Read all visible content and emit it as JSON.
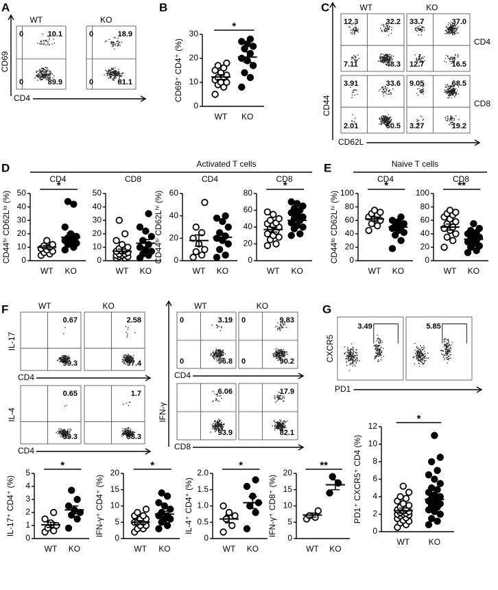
{
  "chart_data": [
    {
      "type": "flow",
      "panel": "A",
      "xlabel": "CD4",
      "ylabel": "CD69",
      "columns": [
        "WT",
        "KO"
      ],
      "rows": [
        {
          "plots": [
            {
              "quadrants": {
                "ul": 0,
                "ur": 10.1,
                "ll": 0,
                "lr": 89.9
              }
            },
            {
              "quadrants": {
                "ul": 0,
                "ur": 18.9,
                "ll": 0,
                "lr": 81.1
              }
            }
          ]
        }
      ]
    },
    {
      "type": "dot",
      "panel": "B",
      "ylabel": "CD69⁺ CD4⁺ (%)",
      "ylim": [
        0,
        30
      ],
      "yticks": [
        0,
        10,
        20,
        30
      ],
      "significance": "*",
      "groups": [
        {
          "label": "WT",
          "marker": "open",
          "values": [
            5,
            8,
            9,
            10,
            10,
            11,
            12,
            12,
            13,
            14,
            15,
            16,
            17,
            18
          ],
          "mean": 12.2,
          "sem": 1.0
        },
        {
          "label": "KO",
          "marker": "filled",
          "values": [
            8,
            12,
            14,
            17,
            19,
            20,
            22,
            24,
            25,
            26,
            27,
            28
          ],
          "mean": 20.5,
          "sem": 2.2
        }
      ]
    },
    {
      "type": "flow",
      "panel": "C",
      "xlabel": "CD62L",
      "ylabel": "CD44",
      "columns": [
        "WT",
        "KO"
      ],
      "rows": [
        {
          "label": "CD4",
          "plots": [
            {
              "quadrants": {
                "ul": 12.3,
                "ur": 32.2,
                "ll": 7.11,
                "lr": 48.3
              }
            },
            {
              "quadrants": {
                "ul": 33.7,
                "ur": 37,
                "ll": 12.7,
                "lr": 16.5
              },
              "value_labels": {
                "ur": "37.0"
              }
            }
          ]
        },
        {
          "label": "CD8",
          "plots": [
            {
              "quadrants": {
                "ul": 3.91,
                "ur": 33.6,
                "ll": 2.01,
                "lr": 60.5
              }
            },
            {
              "quadrants": {
                "ul": 9.05,
                "ur": 68.5,
                "ll": 3.27,
                "lr": 19.2
              }
            }
          ]
        }
      ]
    },
    {
      "type": "dot",
      "panel": "D",
      "group_title": "Activated T cells",
      "title": "CD4",
      "ylabel": "CD44ʰⁱ CD62Lˡᵒ (%)",
      "ylim": [
        0,
        50
      ],
      "yticks": [
        0,
        10,
        20,
        30,
        40,
        50
      ],
      "significance": "*",
      "groups": [
        {
          "label": "WT",
          "marker": "open",
          "values": [
            4,
            5,
            6,
            7,
            8,
            9,
            10,
            11,
            12,
            15
          ],
          "mean": 10,
          "sem": 1.2
        },
        {
          "label": "KO",
          "marker": "filled",
          "values": [
            8,
            10,
            12,
            13,
            14,
            15,
            16,
            17,
            18,
            20,
            25,
            42,
            44
          ],
          "mean": 17.5,
          "sem": 2.9
        }
      ]
    },
    {
      "type": "dot",
      "title": "CD8",
      "ylim": [
        0,
        50
      ],
      "yticks": [
        0,
        10,
        20,
        30,
        40,
        50
      ],
      "groups": [
        {
          "label": "WT",
          "marker": "open",
          "values": [
            2,
            2,
            3,
            3,
            4,
            4,
            5,
            5,
            6,
            7,
            7,
            8,
            9,
            10,
            12,
            15,
            20,
            30
          ],
          "mean": 7,
          "sem": 1.6
        },
        {
          "label": "KO",
          "marker": "filled",
          "values": [
            2,
            4,
            5,
            7,
            8,
            10,
            12,
            15,
            18,
            22,
            25,
            35
          ],
          "mean": 13,
          "sem": 2.8
        }
      ]
    },
    {
      "type": "dot",
      "title": "CD4",
      "ylabel": "CD44ʰⁱ CD62Lʰⁱ (%)",
      "ylim": [
        0,
        60
      ],
      "yticks": [
        0,
        20,
        40,
        60
      ],
      "groups": [
        {
          "label": "WT",
          "marker": "open",
          "values": [
            3,
            5,
            8,
            10,
            15,
            20,
            25,
            30,
            52
          ],
          "mean": 18,
          "sem": 5
        },
        {
          "label": "KO",
          "marker": "filled",
          "values": [
            3,
            5,
            10,
            15,
            18,
            20,
            22,
            25,
            30,
            35,
            38,
            40
          ],
          "mean": 21,
          "sem": 3.5
        }
      ]
    },
    {
      "type": "dot",
      "title": "CD8",
      "ylim": [
        0,
        80
      ],
      "yticks": [
        0,
        20,
        40,
        60,
        80
      ],
      "significance": "*",
      "groups": [
        {
          "label": "WT",
          "marker": "open",
          "values": [
            18,
            20,
            25,
            28,
            30,
            32,
            35,
            38,
            40,
            42,
            44,
            45,
            48,
            50,
            55,
            58
          ],
          "mean": 37,
          "sem": 3
        },
        {
          "label": "KO",
          "marker": "filled",
          "values": [
            30,
            32,
            38,
            40,
            42,
            45,
            48,
            50,
            52,
            55,
            57,
            60,
            62,
            65,
            68,
            70
          ],
          "mean": 48,
          "sem": 3
        }
      ]
    },
    {
      "type": "dot",
      "panel": "E",
      "group_title": "Naive T cells",
      "title": "CD4",
      "ylabel": "CD44ˡᵒ CD62Lʰⁱ (%)",
      "ylim": [
        0,
        100
      ],
      "yticks": [
        0,
        20,
        40,
        60,
        80,
        100
      ],
      "significance": "*",
      "groups": [
        {
          "label": "WT",
          "marker": "open",
          "values": [
            45,
            52,
            55,
            60,
            62,
            65,
            68,
            70,
            72,
            75
          ],
          "mean": 62,
          "sem": 3
        },
        {
          "label": "KO",
          "marker": "filled",
          "values": [
            18,
            30,
            38,
            42,
            45,
            48,
            50,
            52,
            55,
            58,
            60,
            65
          ],
          "mean": 50,
          "sem": 3.5
        }
      ]
    },
    {
      "type": "dot",
      "title": "CD8",
      "ylim": [
        0,
        100
      ],
      "yticks": [
        0,
        20,
        40,
        60,
        80,
        100
      ],
      "significance": "**",
      "groups": [
        {
          "label": "WT",
          "marker": "open",
          "values": [
            20,
            30,
            35,
            40,
            45,
            48,
            50,
            55,
            58,
            62,
            65,
            68,
            70,
            72,
            75
          ],
          "mean": 50,
          "sem": 4.5
        },
        {
          "label": "KO",
          "marker": "filled",
          "values": [
            12,
            15,
            20,
            22,
            25,
            28,
            30,
            32,
            35,
            38,
            40,
            42,
            45,
            48,
            55
          ],
          "mean": 32,
          "sem": 3
        }
      ]
    },
    {
      "type": "flow",
      "panel": "F",
      "columns": [
        "WT",
        "KO"
      ],
      "rows": [
        {
          "ylabel": "IL-17",
          "xlabel": "CD4",
          "plots": [
            {
              "quadrants": {
                "ur": 0.67,
                "lr": 99.3
              }
            },
            {
              "quadrants": {
                "ur": 2.58,
                "lr": 97.4
              }
            }
          ]
        },
        {
          "ylabel": "IL-4",
          "xlabel": "CD4",
          "plots": [
            {
              "quadrants": {
                "ur": 0.65,
                "lr": 99.3
              }
            },
            {
              "quadrants": {
                "ur": 1.7,
                "lr": 98.3
              }
            }
          ]
        }
      ]
    },
    {
      "type": "flow",
      "ylabel": "IFN-γ",
      "columns": [
        "WT",
        "KO"
      ],
      "rows": [
        {
          "xlabel": "CD4",
          "plots": [
            {
              "quadrants": {
                "ul": 0,
                "ur": 3.19,
                "ll": 0,
                "lr": 96.8
              }
            },
            {
              "quadrants": {
                "ul": 0,
                "ur": 9.83,
                "ll": 0,
                "lr": 90.2
              }
            }
          ]
        },
        {
          "xlabel": "CD8",
          "plots": [
            {
              "quadrants": {
                "ur": 6.06,
                "lr": 93.9
              }
            },
            {
              "quadrants": {
                "ur": 17.9,
                "lr": 82.1
              }
            }
          ]
        }
      ]
    },
    {
      "type": "dot",
      "ylabel": "IL-17⁺ CD4⁺ (%)",
      "ylim": [
        0,
        5
      ],
      "yticks": [
        0,
        1,
        2,
        3,
        4,
        5
      ],
      "significance": "*",
      "groups": [
        {
          "label": "WT",
          "marker": "open",
          "values": [
            0.5,
            0.6,
            0.8,
            1.0,
            1.2,
            1.5,
            2.0
          ],
          "mean": 1.05,
          "sem": 0.2
        },
        {
          "label": "KO",
          "marker": "filled",
          "values": [
            0.8,
            1.5,
            1.8,
            2.0,
            2.2,
            2.5,
            3.0,
            3.7
          ],
          "mean": 2.2,
          "sem": 0.3
        }
      ]
    },
    {
      "type": "dot",
      "ylabel": "IFN-γ⁺ CD4⁺ (%)",
      "ylim": [
        0,
        20
      ],
      "yticks": [
        0,
        5,
        10,
        15,
        20
      ],
      "significance": "*",
      "groups": [
        {
          "label": "WT",
          "marker": "open",
          "values": [
            2,
            3,
            3,
            4,
            4,
            5,
            5,
            5,
            6,
            6,
            7,
            7,
            8,
            9
          ],
          "mean": 5,
          "sem": 0.5
        },
        {
          "label": "KO",
          "marker": "filled",
          "values": [
            3,
            4,
            5,
            6,
            6,
            7,
            7,
            8,
            9,
            10,
            11,
            13,
            14
          ],
          "mean": 7.5,
          "sem": 0.9
        }
      ]
    },
    {
      "type": "dot",
      "ylabel": "IL-4⁺ CD4⁺ (%)",
      "ylim": [
        0,
        2
      ],
      "yticks": [
        0,
        0.5,
        {
          "value": 1,
          "label": "1.0"
        },
        1.5,
        {
          "value": 2,
          "label": "2.0"
        }
      ],
      "significance": "*",
      "groups": [
        {
          "label": "WT",
          "marker": "open",
          "values": [
            0.2,
            0.4,
            0.6,
            0.7,
            0.8,
            1.0
          ],
          "mean": 0.6,
          "sem": 0.12
        },
        {
          "label": "KO",
          "marker": "filled",
          "values": [
            0.3,
            0.8,
            1.0,
            1.1,
            1.3,
            1.6,
            1.8
          ],
          "mean": 1.1,
          "sem": 0.18
        }
      ]
    },
    {
      "type": "dot",
      "ylabel": "IFN-γ⁺ CD8⁺ (%)",
      "ylim": [
        0,
        20
      ],
      "yticks": [
        0,
        5,
        10,
        15,
        20
      ],
      "significance": "**",
      "groups": [
        {
          "label": "WT",
          "marker": "open",
          "values": [
            6,
            6.5,
            7,
            8.5
          ],
          "mean": 7.2,
          "sem": 0.6
        },
        {
          "label": "KO",
          "marker": "filled",
          "values": [
            14,
            17,
            19
          ],
          "mean": 16.5,
          "sem": 1.5
        }
      ]
    },
    {
      "type": "flow",
      "panel": "G",
      "xlabel": "PD1",
      "ylabel": "CXCR5",
      "rows": [
        {
          "plots": [
            {
              "gate": 3.49
            },
            {
              "gate": 5.85
            }
          ]
        }
      ]
    },
    {
      "type": "dot",
      "ylabel": "PD1⁺ CXCR5⁺ CD4 (%)",
      "ylim": [
        0,
        12
      ],
      "yticks": [
        0,
        2,
        4,
        6,
        8,
        10,
        12
      ],
      "significance": "*",
      "groups": [
        {
          "label": "WT",
          "marker": "open",
          "values": [
            0.5,
            0.8,
            1,
            1.2,
            1.3,
            1.5,
            1.6,
            1.8,
            1.9,
            2,
            2,
            2.1,
            2.2,
            2.3,
            2.4,
            2.5,
            2.6,
            2.8,
            3,
            3.2,
            3.5,
            3.8,
            4,
            4.5,
            5.2
          ],
          "mean": 2.4,
          "sem": 0.3
        },
        {
          "label": "KO",
          "marker": "filled",
          "values": [
            0.8,
            1.2,
            1.5,
            2,
            2.3,
            2.5,
            2.8,
            3,
            3.2,
            3.4,
            3.5,
            3.6,
            3.8,
            4,
            4.2,
            4.5,
            4.8,
            5,
            5.5,
            6,
            6.5,
            7,
            8,
            8.5,
            11
          ],
          "mean": 3.7,
          "sem": 0.45
        }
      ]
    }
  ]
}
